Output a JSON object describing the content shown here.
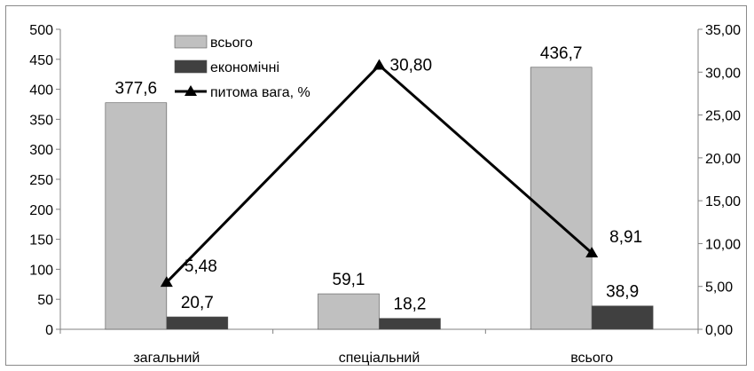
{
  "chart_data": {
    "type": "bar",
    "categories": [
      "загальний",
      "спеціальний",
      "всього"
    ],
    "series": [
      {
        "name": "всього",
        "kind": "bar",
        "axis": "left",
        "color": "#c0c0c0",
        "values": [
          377.6,
          59.1,
          436.7
        ],
        "labels": [
          "377,6",
          "59,1",
          "436,7"
        ]
      },
      {
        "name": "економічні",
        "kind": "bar",
        "axis": "left",
        "color": "#404040",
        "values": [
          20.7,
          18.2,
          38.9
        ],
        "labels": [
          "20,7",
          "18,2",
          "38,9"
        ]
      },
      {
        "name": "питома вага, %",
        "kind": "line",
        "axis": "right",
        "color": "#000000",
        "values": [
          5.48,
          30.8,
          8.91
        ],
        "labels": [
          "5,48",
          "30,80",
          "8,91"
        ]
      }
    ],
    "y_left": {
      "min": 0,
      "max": 500,
      "step": 50,
      "ticks": [
        "0",
        "50",
        "100",
        "150",
        "200",
        "250",
        "300",
        "350",
        "400",
        "450",
        "500"
      ]
    },
    "y_right": {
      "min": 0,
      "max": 35,
      "step": 5,
      "ticks": [
        "0,00",
        "5,00",
        "10,00",
        "15,00",
        "20,00",
        "25,00",
        "30,00",
        "35,00"
      ]
    },
    "legend": {
      "position": "top-left",
      "items": [
        "всього",
        "економічні",
        "питома вага, %"
      ]
    },
    "grid": false
  }
}
